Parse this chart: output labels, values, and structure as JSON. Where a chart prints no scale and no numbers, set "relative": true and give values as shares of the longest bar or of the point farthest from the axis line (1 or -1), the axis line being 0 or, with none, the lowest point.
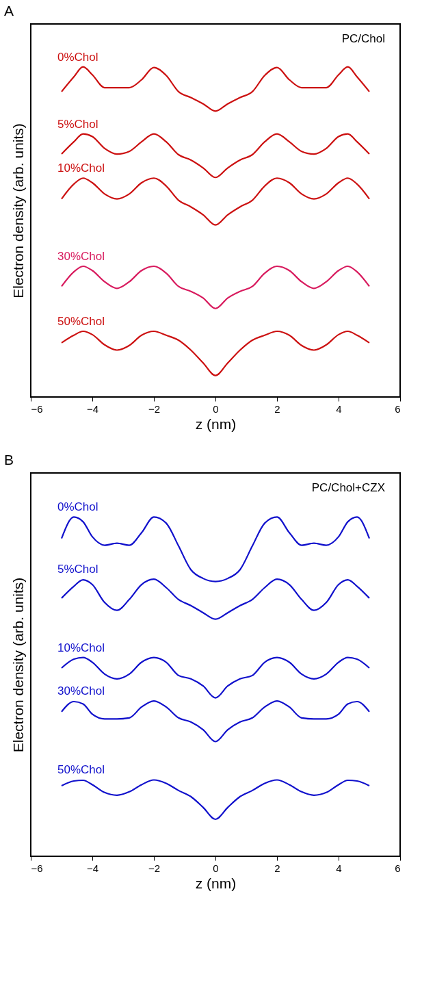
{
  "chart_data": [
    {
      "type": "line",
      "title": "A",
      "xlabel": "z (nm)",
      "ylabel": "Electron density (arb. units)",
      "annotations": [
        "PC/Chol"
      ],
      "relative": true,
      "xlim": [
        -6,
        6
      ],
      "xticks": [
        -6,
        -4,
        -2,
        0,
        2,
        4,
        6
      ],
      "grid": false,
      "legend": false,
      "tick_labels": "x",
      "marker": "none",
      "line_style": "solid",
      "x": [
        -5,
        -4.6,
        -4.3,
        -4.0,
        -3.6,
        -3.2,
        -2.8,
        -2.4,
        -2.0,
        -1.6,
        -1.2,
        -0.8,
        -0.4,
        0,
        0.4,
        0.8,
        1.2,
        1.6,
        2.0,
        2.4,
        2.8,
        3.2,
        3.6,
        4.0,
        4.3,
        4.6,
        5
      ],
      "series": [
        {
          "name": "0%Chol",
          "color": "#cc1111",
          "values": [
            0.925,
            0.97,
            1.0,
            0.976,
            0.937,
            0.937,
            0.937,
            0.961,
            0.998,
            0.974,
            0.925,
            0.907,
            0.888,
            0.866,
            0.888,
            0.907,
            0.925,
            0.974,
            0.998,
            0.961,
            0.937,
            0.937,
            0.937,
            0.976,
            1.0,
            0.97,
            0.925
          ]
        },
        {
          "name": "5%Chol",
          "color": "#cc1111",
          "values": [
            0.736,
            0.773,
            0.797,
            0.789,
            0.753,
            0.736,
            0.744,
            0.773,
            0.797,
            0.773,
            0.734,
            0.718,
            0.694,
            0.665,
            0.694,
            0.718,
            0.734,
            0.773,
            0.797,
            0.773,
            0.744,
            0.736,
            0.753,
            0.789,
            0.797,
            0.773,
            0.736
          ]
        },
        {
          "name": "10%Chol",
          "color": "#cc1111",
          "values": [
            0.6,
            0.645,
            0.663,
            0.649,
            0.615,
            0.6,
            0.615,
            0.649,
            0.663,
            0.639,
            0.596,
            0.576,
            0.552,
            0.521,
            0.552,
            0.576,
            0.596,
            0.639,
            0.663,
            0.649,
            0.615,
            0.6,
            0.615,
            0.649,
            0.663,
            0.645,
            0.6
          ]
        },
        {
          "name": "30%Chol",
          "color": "#d81b5e",
          "values": [
            0.335,
            0.379,
            0.396,
            0.383,
            0.349,
            0.329,
            0.349,
            0.383,
            0.396,
            0.375,
            0.335,
            0.32,
            0.3,
            0.268,
            0.3,
            0.32,
            0.335,
            0.375,
            0.396,
            0.383,
            0.349,
            0.329,
            0.349,
            0.383,
            0.396,
            0.379,
            0.335
          ]
        },
        {
          "name": "50%Chol",
          "color": "#cc1111",
          "values": [
            0.164,
            0.187,
            0.199,
            0.189,
            0.158,
            0.142,
            0.156,
            0.187,
            0.199,
            0.187,
            0.172,
            0.142,
            0.103,
            0.065,
            0.103,
            0.142,
            0.172,
            0.187,
            0.199,
            0.187,
            0.156,
            0.142,
            0.158,
            0.189,
            0.199,
            0.187,
            0.164
          ]
        }
      ]
    },
    {
      "type": "line",
      "title": "B",
      "xlabel": "z (nm)",
      "ylabel": "Electron density (arb. units)",
      "annotations": [
        "PC/Chol+CZX"
      ],
      "relative": true,
      "xlim": [
        -6,
        6
      ],
      "xticks": [
        -6,
        -4,
        -2,
        0,
        2,
        4,
        6
      ],
      "grid": false,
      "legend": false,
      "tick_labels": "x",
      "marker": "none",
      "line_style": "solid",
      "x": [
        -5,
        -4.6,
        -4.3,
        -4.0,
        -3.6,
        -3.2,
        -2.8,
        -2.4,
        -2.0,
        -1.6,
        -1.2,
        -0.8,
        -0.4,
        0,
        0.4,
        0.8,
        1.2,
        1.6,
        2.0,
        2.4,
        2.8,
        3.2,
        3.6,
        4.0,
        4.3,
        4.6,
        5
      ],
      "series": [
        {
          "name": "0%Chol",
          "color": "#1111cc",
          "values": [
            0.937,
            1.0,
            0.986,
            0.942,
            0.917,
            0.923,
            0.917,
            0.954,
            1.0,
            0.982,
            0.915,
            0.845,
            0.819,
            0.81,
            0.819,
            0.845,
            0.915,
            0.982,
            1.0,
            0.954,
            0.917,
            0.923,
            0.917,
            0.942,
            0.986,
            1.0,
            0.937
          ]
        },
        {
          "name": "5%Chol",
          "color": "#1111cc",
          "values": [
            0.761,
            0.796,
            0.815,
            0.801,
            0.748,
            0.725,
            0.757,
            0.801,
            0.817,
            0.792,
            0.757,
            0.739,
            0.718,
            0.699,
            0.718,
            0.739,
            0.757,
            0.792,
            0.817,
            0.801,
            0.757,
            0.725,
            0.748,
            0.801,
            0.815,
            0.796,
            0.761
          ]
        },
        {
          "name": "10%Chol",
          "color": "#1111cc",
          "values": [
            0.555,
            0.581,
            0.586,
            0.572,
            0.537,
            0.523,
            0.537,
            0.572,
            0.586,
            0.572,
            0.533,
            0.523,
            0.502,
            0.467,
            0.502,
            0.523,
            0.533,
            0.572,
            0.586,
            0.572,
            0.537,
            0.523,
            0.537,
            0.572,
            0.586,
            0.581,
            0.555
          ]
        },
        {
          "name": "30%Chol",
          "color": "#1111cc",
          "values": [
            0.426,
            0.456,
            0.449,
            0.419,
            0.405,
            0.405,
            0.408,
            0.44,
            0.458,
            0.44,
            0.408,
            0.396,
            0.373,
            0.338,
            0.373,
            0.396,
            0.408,
            0.44,
            0.458,
            0.44,
            0.408,
            0.405,
            0.405,
            0.419,
            0.449,
            0.456,
            0.426
          ]
        },
        {
          "name": "50%Chol",
          "color": "#1111cc",
          "values": [
            0.208,
            0.222,
            0.224,
            0.211,
            0.188,
            0.18,
            0.19,
            0.211,
            0.225,
            0.215,
            0.194,
            0.176,
            0.144,
            0.109,
            0.144,
            0.176,
            0.194,
            0.215,
            0.225,
            0.211,
            0.19,
            0.18,
            0.188,
            0.211,
            0.224,
            0.222,
            0.208
          ]
        }
      ]
    }
  ]
}
